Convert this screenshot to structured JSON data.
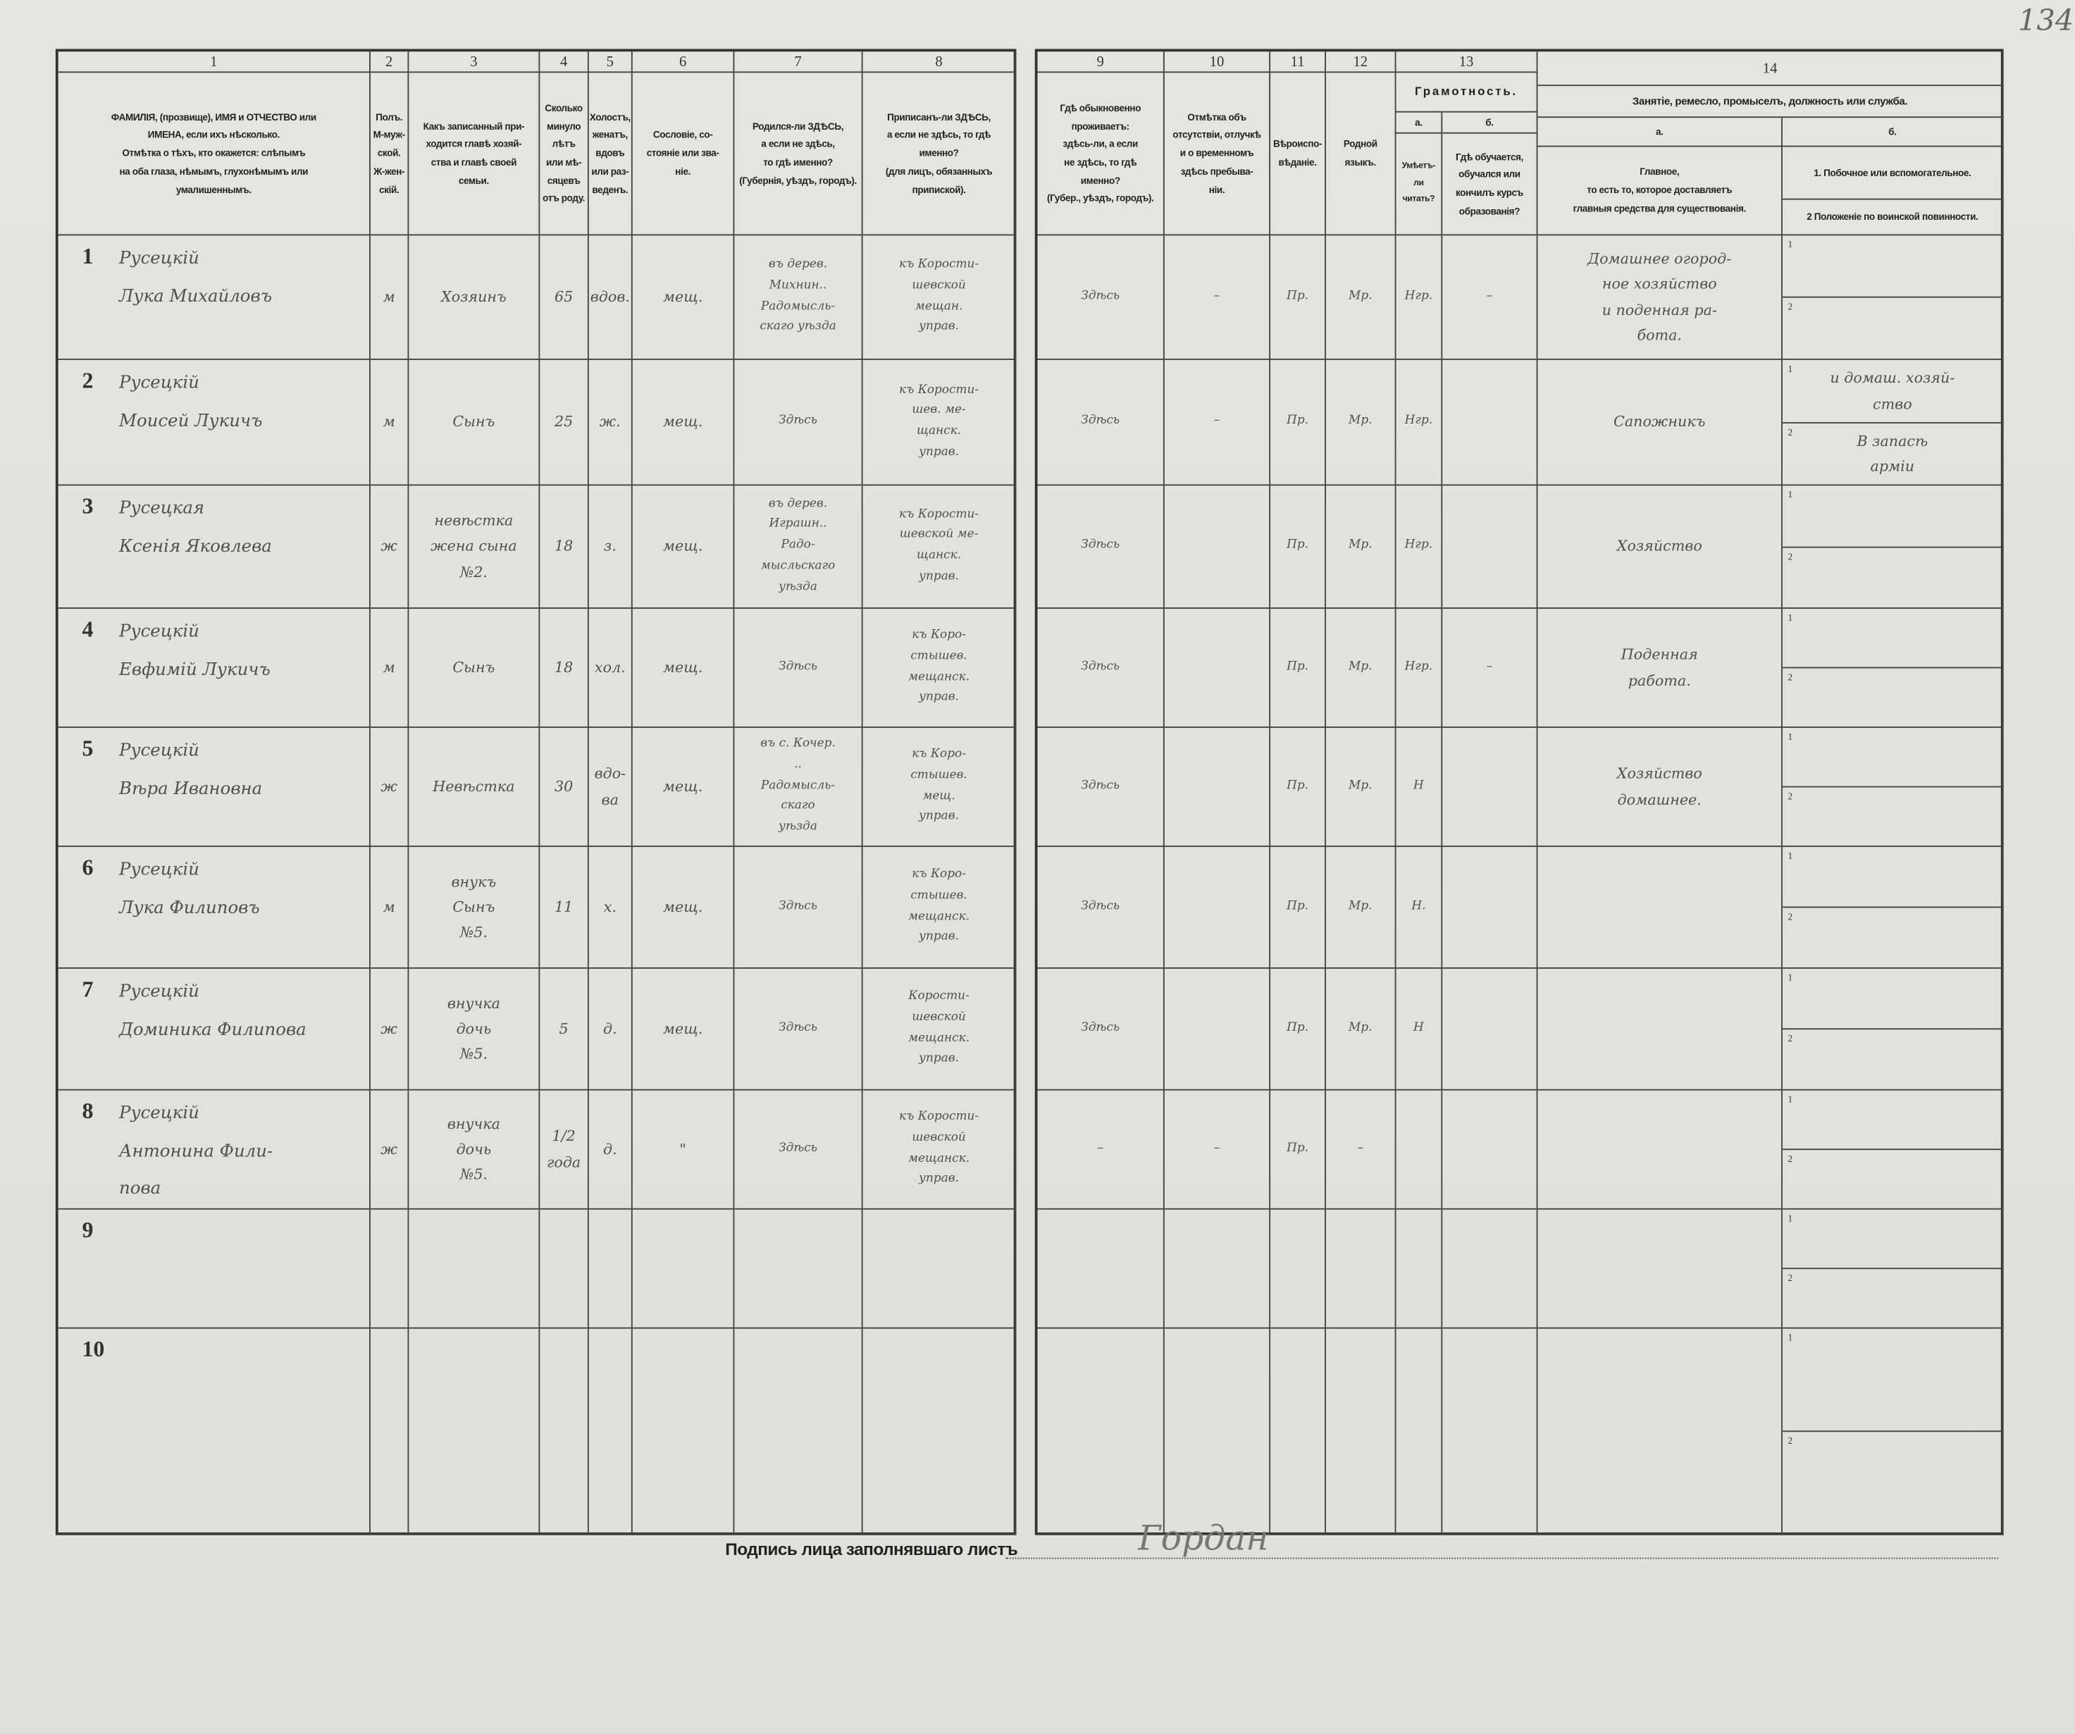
{
  "page_number": "134",
  "left_headers": [
    {
      "num": "1",
      "text": "ФАМИЛІЯ, (прозвище), ИМЯ и ОТЧЕСТВО или\nИМЕНА, если ихъ нѣсколько.\nОтмѣтка о тѣхъ, кто окажется: слѣпымъ\nна оба глаза, нѣмымъ, глухонѣмымъ или\nумалишеннымъ."
    },
    {
      "num": "2",
      "text": "Полъ.\nМ-муж-\nской.\nЖ-жен-\nскій."
    },
    {
      "num": "3",
      "text": "Какъ записанный при-\nходится главѣ хозяй-\nства и главѣ своей\nсемьи."
    },
    {
      "num": "4",
      "text": "Сколько\nминуло\nлѣтъ\nили мѣ-\nсяцевъ\nотъ роду."
    },
    {
      "num": "5",
      "text": "Холостъ,\nженатъ,\nвдовъ\nили раз-\nведенъ."
    },
    {
      "num": "6",
      "text": "Сословіе, со-\nстояніе или зва-\nніе."
    },
    {
      "num": "7",
      "text": "Родился-ли ЗДѢСЬ,\nа если не здѣсь,\nто гдѣ именно?\n(Губернія, уѣздъ, городъ)."
    },
    {
      "num": "8",
      "text": "Приписанъ-ли ЗДѢСЬ,\nа если не здѣсь, то гдѣ\nименно?\n(для лицъ, обязанныхъ\nприпиской)."
    }
  ],
  "right_headers": {
    "col9": {
      "num": "9",
      "text": "Гдѣ обыкновенно\nпроживаетъ:\nздѣсь-ли, а если\nне здѣсь, то гдѣ\nименно?\n(Губер., уѣздъ, городъ)."
    },
    "col10": {
      "num": "10",
      "text": "Отмѣтка объ\nотсутствіи, отлучкѣ\nи о временномъ\nздѣсь пребыва-\nніи."
    },
    "col11": {
      "num": "11",
      "text": "Вѣроиспо-\nвѣданіе."
    },
    "col12": {
      "num": "12",
      "text": "Родной\nязыкъ."
    },
    "col13": {
      "num": "13",
      "title": "Грамотность.",
      "a_label": "а.",
      "a_text": "Умѣетъ-\nли\nчитать?",
      "b_label": "б.",
      "b_text": "Гдѣ обучается,\nобучался или\nкончилъ курсъ\nобразованія?"
    },
    "col14": {
      "num": "14",
      "title": "Занятіе, ремесло, промыселъ, должность или служба.",
      "a_label": "а.",
      "a_text": "Главное,\nто есть то, которое доставляетъ\nглавныя средства для существованія.",
      "b_label": "б.",
      "b1_text": "1. Побочное или вспомогательное.",
      "b2_text": "2 Положеніе по воинской повинности."
    }
  },
  "sub_labels": [
    "1",
    "2"
  ],
  "rows": [
    {
      "num": "1",
      "name": "Русецкій\nЛука Михайловъ",
      "sex": "м",
      "relation": "Хозяинъ",
      "age": "65",
      "marital": "вдов.",
      "estate": "мещ.",
      "birthplace": "въ дерев.\nМихнин..\nРадомысль-\nскаго уѣзда",
      "registered": "къ Корости-\nшевской\nмещан.\nуправ.",
      "residence": "Здѣсь",
      "absence": "–",
      "religion": "Пр.",
      "language": "Мр.",
      "can_read": "Нгр.",
      "school": "–",
      "occ_main": "Домашнее огород-\nное хозяйство\nи поденная ра-\nбота.",
      "occ_aux": "",
      "military": ""
    },
    {
      "num": "2",
      "name": "Русецкій\nМоисей Лукичъ",
      "sex": "м",
      "relation": "Сынъ",
      "age": "25",
      "marital": "ж.",
      "estate": "мещ.",
      "birthplace": "Здѣсь",
      "registered": "къ Корости-\nшев. ме-\nщанск.\nуправ.",
      "residence": "Здѣсь",
      "absence": "–",
      "religion": "Пр.",
      "language": "Мр.",
      "can_read": "Нгр.",
      "school": "",
      "occ_main": "Сапожникъ",
      "occ_aux": "и домаш. хозяй-\nство",
      "military": "В запасѣ\nарміи"
    },
    {
      "num": "3",
      "name": "Русецкая\nКсенія Яковлева",
      "sex": "ж",
      "relation": "невѣстка\nжена сына\n№2.",
      "age": "18",
      "marital": "з.",
      "estate": "мещ.",
      "birthplace": "въ дерев.\nИграшн..\nРадо-\nмысльскаго\nуѣзда",
      "registered": "къ Корости-\nшевской ме-\nщанск.\nуправ.",
      "residence": "Здѣсь",
      "absence": "",
      "religion": "Пр.",
      "language": "Мр.",
      "can_read": "Нгр.",
      "school": "",
      "occ_main": "Хозяйство",
      "occ_aux": "",
      "military": ""
    },
    {
      "num": "4",
      "name": "Русецкій\nЕвфимій Лукичъ",
      "sex": "м",
      "relation": "Сынъ",
      "age": "18",
      "marital": "хол.",
      "estate": "мещ.",
      "birthplace": "Здѣсь",
      "registered": "къ Коро-\nстышев.\nмещанск.\nуправ.",
      "residence": "Здѣсь",
      "absence": "",
      "religion": "Пр.",
      "language": "Мр.",
      "can_read": "Нгр.",
      "school": "–",
      "occ_main": "Поденная\nработа.",
      "occ_aux": "",
      "military": ""
    },
    {
      "num": "5",
      "name": "Русецкій\nВѣра Ивановна",
      "sex": "ж",
      "relation": "Невѣстка",
      "age": "30",
      "marital": "вдо-\nва",
      "estate": "мещ.",
      "birthplace": "въ с. Кочер.\n..\nРадомысль-\nскаго\nуѣзда",
      "registered": "къ Коро-\nстышев.\nмещ.\nуправ.",
      "residence": "Здѣсь",
      "absence": "",
      "religion": "Пр.",
      "language": "Мр.",
      "can_read": "Н",
      "school": "",
      "occ_main": "Хозяйство\nдомашнее.",
      "occ_aux": "",
      "military": ""
    },
    {
      "num": "6",
      "name": "Русецкій\nЛука Филиповъ",
      "sex": "м",
      "relation": "внукъ\nСынъ\n№5.",
      "age": "11",
      "marital": "х.",
      "estate": "мещ.",
      "birthplace": "Здѣсь",
      "registered": "къ Коро-\nстышев.\nмещанск.\nуправ.",
      "residence": "Здѣсь",
      "absence": "",
      "religion": "Пр.",
      "language": "Мр.",
      "can_read": "Н.",
      "school": "",
      "occ_main": "",
      "occ_aux": "",
      "military": ""
    },
    {
      "num": "7",
      "name": "Русецкій\nДоминика Филипова",
      "sex": "ж",
      "relation": "внучка\nдочь\n№5.",
      "age": "5",
      "marital": "д.",
      "estate": "мещ.",
      "birthplace": "Здѣсь",
      "registered": "Корости-\nшевской\nмещанск.\nуправ.",
      "residence": "Здѣсь",
      "absence": "",
      "religion": "Пр.",
      "language": "Мр.",
      "can_read": "Н",
      "school": "",
      "occ_main": "",
      "occ_aux": "",
      "military": ""
    },
    {
      "num": "8",
      "name": "Русецкій\nАнтонина Фили-\nпова",
      "sex": "ж",
      "relation": "внучка\nдочь\n№5.",
      "age": "1/2\nгода",
      "marital": "д.",
      "estate": "\"",
      "birthplace": "Здѣсь",
      "registered": "къ Корости-\nшевской\nмещанск.\nуправ.",
      "residence": "–",
      "absence": "–",
      "religion": "Пр.",
      "language": "–",
      "can_read": "",
      "school": "",
      "occ_main": "",
      "occ_aux": "",
      "military": ""
    },
    {
      "num": "9",
      "name": "",
      "sex": "",
      "relation": "",
      "age": "",
      "marital": "",
      "estate": "",
      "birthplace": "",
      "registered": "",
      "residence": "",
      "absence": "",
      "religion": "",
      "language": "",
      "can_read": "",
      "school": "",
      "occ_main": "",
      "occ_aux": "",
      "military": ""
    },
    {
      "num": "10",
      "name": "",
      "sex": "",
      "relation": "",
      "age": "",
      "marital": "",
      "estate": "",
      "birthplace": "",
      "registered": "",
      "residence": "",
      "absence": "",
      "religion": "",
      "language": "",
      "can_read": "",
      "school": "",
      "occ_main": "",
      "occ_aux": "",
      "military": ""
    }
  ],
  "footer": {
    "signature_label": "Подпись лица заполнявшаго листъ",
    "signature": "Гордан"
  },
  "colors": {
    "paper": "#e2e2e0",
    "ink_print": "#222222",
    "ink_hand": "#505050"
  }
}
